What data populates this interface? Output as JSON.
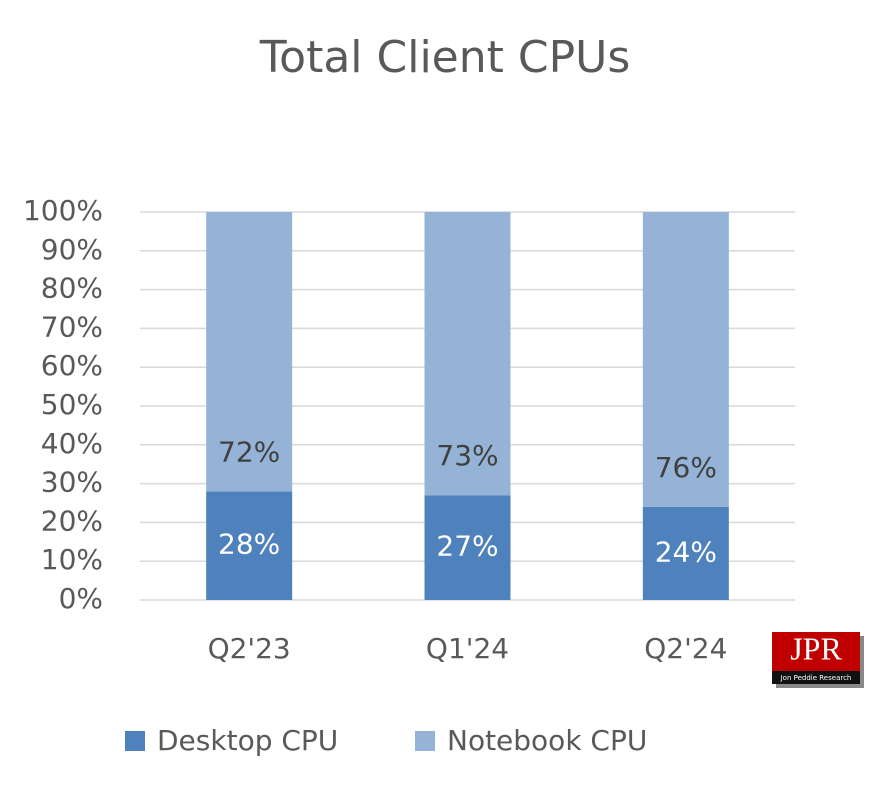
{
  "chart_data": {
    "type": "stacked-bar",
    "title": "Total Client CPUs",
    "categories": [
      "Q2'23",
      "Q1'24",
      "Q2'24"
    ],
    "series": [
      {
        "name": "Desktop CPU",
        "color": "#4f81bd",
        "values": [
          28,
          27,
          24
        ],
        "value_labels": [
          "28%",
          "27%",
          "24%"
        ]
      },
      {
        "name": "Notebook CPU",
        "color": "#95b3d7",
        "values": [
          72,
          73,
          76
        ],
        "value_labels": [
          "72%",
          "73%",
          "76%"
        ]
      }
    ],
    "ylim": [
      0,
      100
    ],
    "yticks": [
      {
        "value": 0,
        "label": "0%"
      },
      {
        "value": 10,
        "label": "10%"
      },
      {
        "value": 20,
        "label": "20%"
      },
      {
        "value": 30,
        "label": "30%"
      },
      {
        "value": 40,
        "label": "40%"
      },
      {
        "value": 50,
        "label": "50%"
      },
      {
        "value": 60,
        "label": "60%"
      },
      {
        "value": 70,
        "label": "70%"
      },
      {
        "value": 80,
        "label": "80%"
      },
      {
        "value": 90,
        "label": "90%"
      },
      {
        "value": 100,
        "label": "100%"
      }
    ],
    "grid": true,
    "legend": "bottom",
    "logo": {
      "text": "JPR",
      "subtext": "Jon Peddie Research"
    }
  }
}
